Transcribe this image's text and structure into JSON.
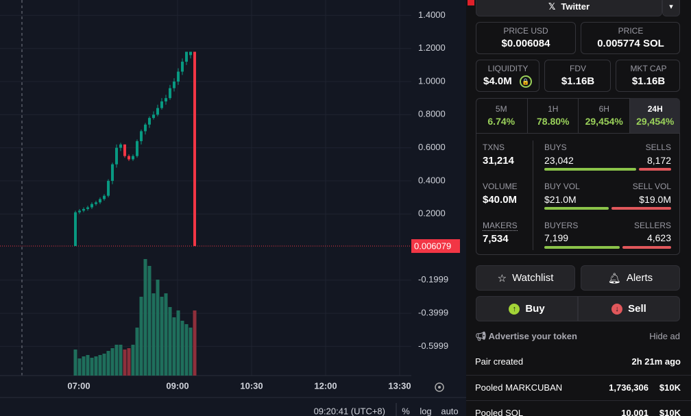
{
  "chart": {
    "yticks": [
      {
        "value": 1.4,
        "label": "1.4000"
      },
      {
        "value": 1.2,
        "label": "1.2000"
      },
      {
        "value": 1.0,
        "label": "1.0000"
      },
      {
        "value": 0.8,
        "label": "0.8000"
      },
      {
        "value": 0.6,
        "label": "0.6000"
      },
      {
        "value": 0.4,
        "label": "0.4000"
      },
      {
        "value": 0.2,
        "label": "0.2000"
      },
      {
        "value": -0.1999,
        "label": "-0.1999"
      },
      {
        "value": -0.3999,
        "label": "-0.3999"
      },
      {
        "value": -0.5999,
        "label": "-0.5999"
      }
    ],
    "price_line": 0.006079,
    "xticks": [
      "07:00",
      "09:00",
      "10:30",
      "12:00",
      "13:30"
    ],
    "open": [
      0.006,
      0.21,
      0.22,
      0.23,
      0.24,
      0.26,
      0.27,
      0.29,
      0.31,
      0.4,
      0.5,
      0.6,
      0.62,
      0.55,
      0.53,
      0.55,
      0.64,
      0.7,
      0.74,
      0.78,
      0.8,
      0.84,
      0.88,
      0.9,
      0.96,
      1.0,
      1.06,
      1.12,
      1.16,
      1.18
    ],
    "high": [
      0.22,
      0.23,
      0.24,
      0.25,
      0.27,
      0.28,
      0.3,
      0.32,
      0.41,
      0.51,
      0.62,
      0.63,
      0.62,
      0.56,
      0.56,
      0.65,
      0.71,
      0.75,
      0.79,
      0.82,
      0.86,
      0.9,
      0.92,
      0.98,
      1.02,
      1.08,
      1.14,
      1.18,
      1.18,
      1.18
    ],
    "low": [
      0.006,
      0.2,
      0.21,
      0.22,
      0.23,
      0.25,
      0.26,
      0.28,
      0.3,
      0.38,
      0.48,
      0.58,
      0.54,
      0.52,
      0.52,
      0.54,
      0.62,
      0.68,
      0.72,
      0.77,
      0.79,
      0.83,
      0.86,
      0.89,
      0.94,
      0.98,
      1.04,
      1.1,
      1.14,
      0.006
    ],
    "close": [
      0.21,
      0.22,
      0.23,
      0.24,
      0.26,
      0.27,
      0.29,
      0.31,
      0.4,
      0.5,
      0.6,
      0.62,
      0.55,
      0.53,
      0.55,
      0.64,
      0.7,
      0.74,
      0.78,
      0.8,
      0.84,
      0.88,
      0.9,
      0.96,
      1.0,
      1.06,
      1.12,
      1.18,
      1.18,
      0.006
    ],
    "volume": [
      38,
      25,
      28,
      30,
      26,
      28,
      30,
      32,
      36,
      40,
      45,
      45,
      38,
      40,
      45,
      70,
      115,
      170,
      160,
      120,
      140,
      115,
      120,
      100,
      85,
      95,
      80,
      75,
      70,
      95
    ]
  },
  "footer": {
    "time": "09:20:41 (UTC+8)",
    "percent": "%",
    "log": "log",
    "auto": "auto"
  },
  "panel": {
    "twitter": "Twitter",
    "price_usd": {
      "label": "PRICE USD",
      "value": "$0.006084"
    },
    "price": {
      "label": "PRICE",
      "value": "0.005774 SOL"
    },
    "liquidity": {
      "label": "LIQUIDITY",
      "value": "$4.0M"
    },
    "fdv": {
      "label": "FDV",
      "value": "$1.16B"
    },
    "mkt_cap": {
      "label": "MKT CAP",
      "value": "$1.16B"
    },
    "periods": [
      {
        "label": "5M",
        "value": "6.74%"
      },
      {
        "label": "1H",
        "value": "78.80%"
      },
      {
        "label": "6H",
        "value": "29,454%"
      },
      {
        "label": "24H",
        "value": "29,454%"
      }
    ],
    "txns": {
      "label": "TXNS",
      "value": "31,214"
    },
    "buys": {
      "label": "BUYS",
      "value": "23,042"
    },
    "sells": {
      "label": "SELLS",
      "value": "8,172"
    },
    "volume": {
      "label": "VOLUME",
      "value": "$40.0M"
    },
    "buy_vol": {
      "label": "BUY VOL",
      "value": "$21.0M"
    },
    "sell_vol": {
      "label": "SELL VOL",
      "value": "$19.0M"
    },
    "makers": {
      "label": "MAKERS",
      "value": "7,534"
    },
    "buyers": {
      "label": "BUYERS",
      "value": "7,199"
    },
    "sellers": {
      "label": "SELLERS",
      "value": "4,623"
    },
    "watchlist": "Watchlist",
    "alerts": "Alerts",
    "buy": "Buy",
    "sell": "Sell",
    "advertise": "Advertise your token",
    "hide_ad": "Hide ad",
    "pair_created": {
      "label": "Pair created",
      "value": "2h 21m ago"
    },
    "pooled_token": {
      "label": "Pooled MARKCUBAN",
      "amount": "1,736,306",
      "usd": "$10K"
    },
    "pooled_sol": {
      "label": "Pooled SOL",
      "amount": "10,001",
      "usd": "$10K"
    }
  }
}
